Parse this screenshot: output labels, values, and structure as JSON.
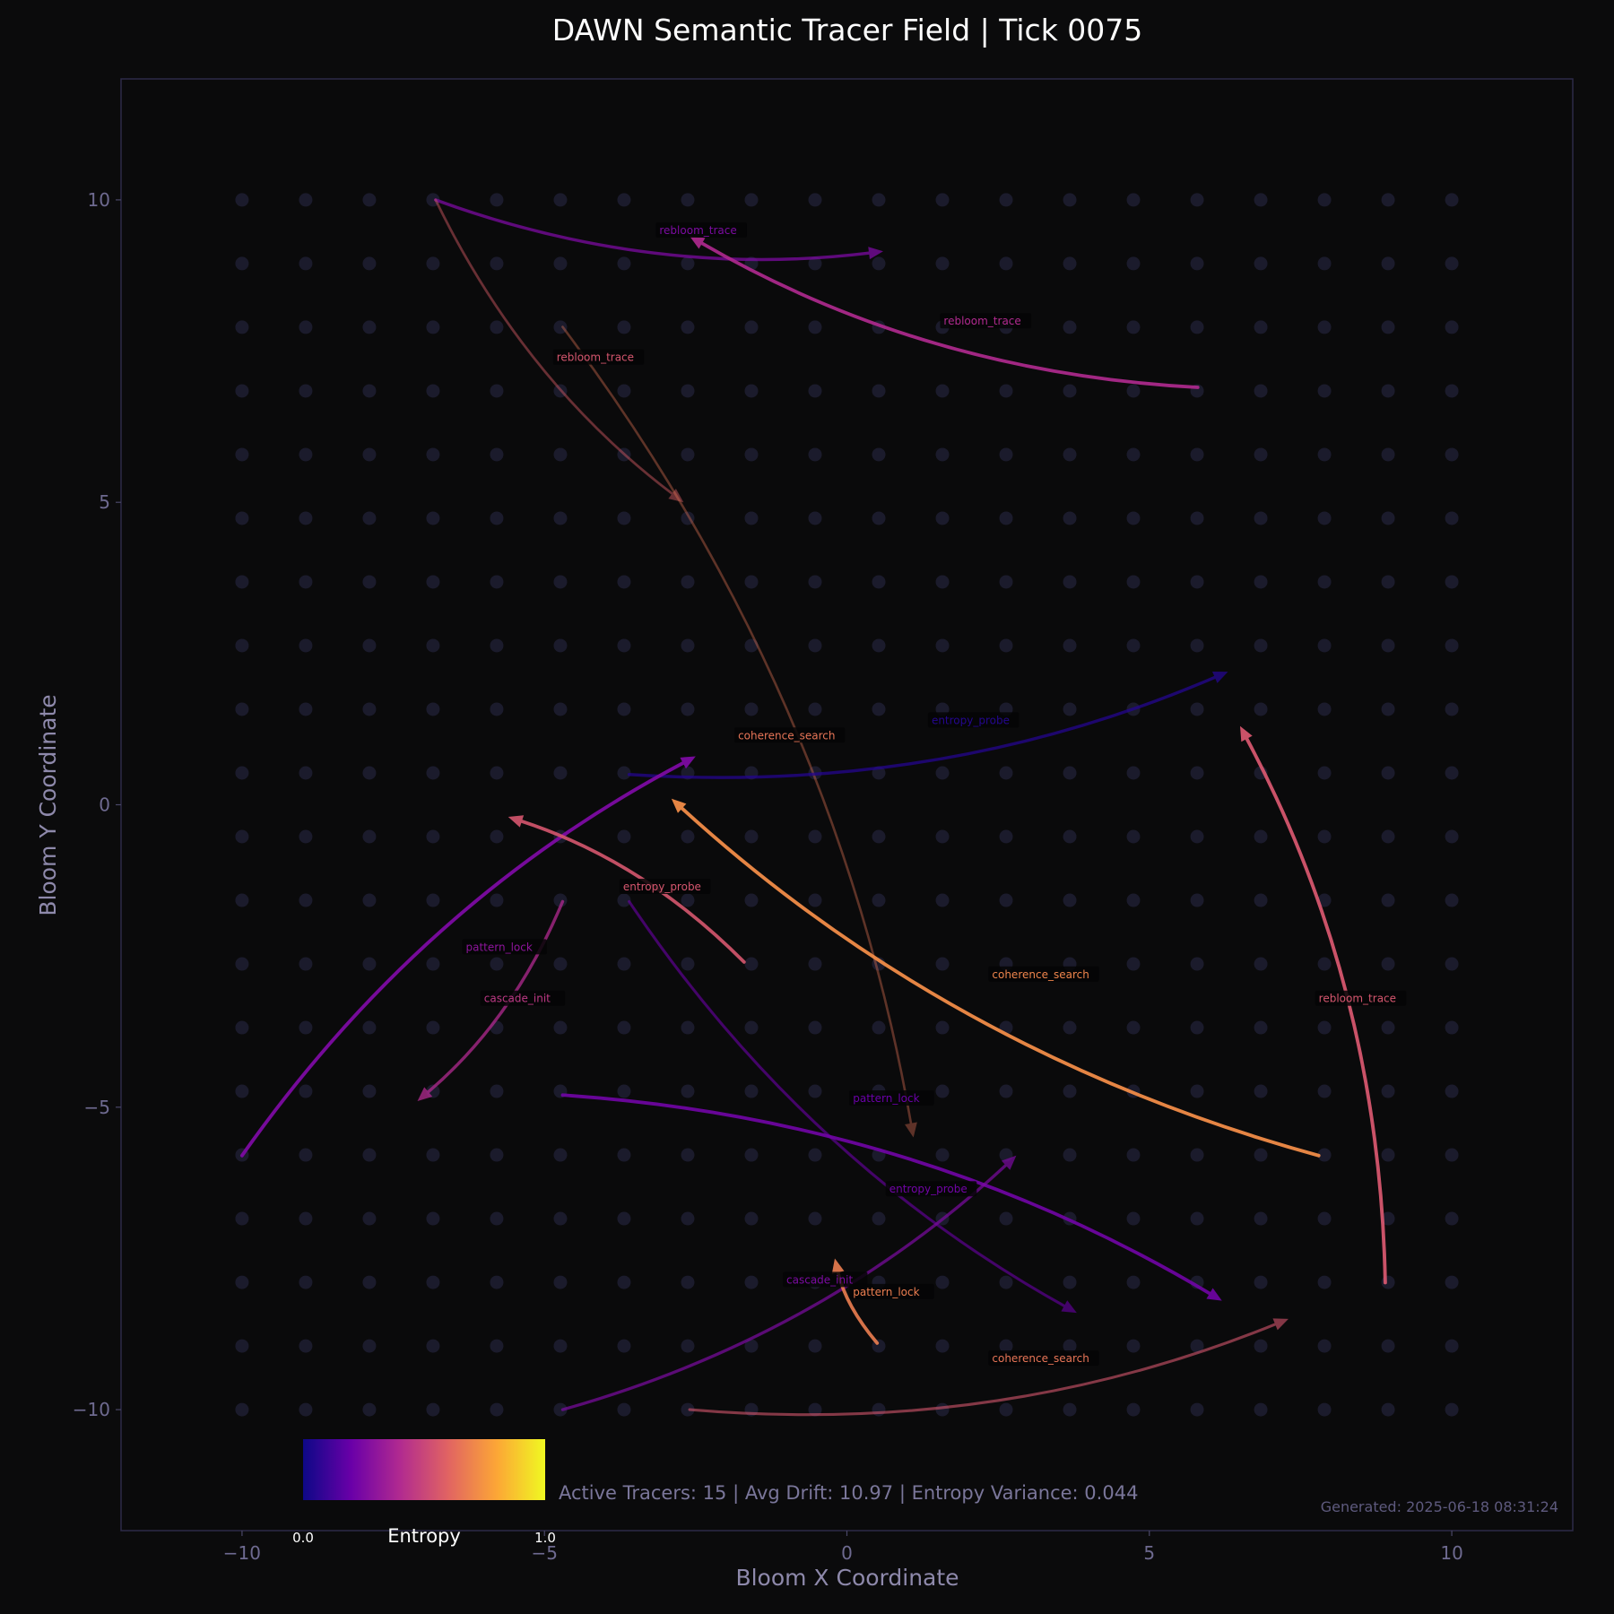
{
  "chart_data": {
    "type": "line",
    "title": "DAWN Semantic Tracer Field | Tick 0075",
    "xlabel": "Bloom X Coordinate",
    "ylabel": "Bloom Y Coordinate",
    "xlim": [
      -12,
      12
    ],
    "ylim": [
      -12,
      12
    ],
    "xticks": [
      "−10",
      "−5",
      "0",
      "5",
      "10"
    ],
    "yticks": [
      "10",
      "5",
      "0",
      "−5",
      "−10"
    ],
    "grid": "dot lattice",
    "colormap": {
      "name": "plasma",
      "title": "Entropy",
      "min_label": "0.0",
      "max_label": "1.0",
      "stops": [
        "#0d0887",
        "#6a00a8",
        "#b12a90",
        "#e16462",
        "#fca636",
        "#f0f921"
      ]
    },
    "series": [
      {
        "label": "rebloom_trace",
        "from": [
          -6.8,
          10.0
        ],
        "to": [
          0.6,
          9.15
        ],
        "entropy": 0.25,
        "opacity": 0.75
      },
      {
        "label": "rebloom_trace",
        "from": [
          5.8,
          6.9
        ],
        "to": [
          -2.6,
          9.4
        ],
        "entropy": 0.4,
        "opacity": 0.9
      },
      {
        "label": "rebloom_trace",
        "from": [
          -6.8,
          10.0
        ],
        "to": [
          -2.7,
          5.0
        ],
        "entropy": 0.58,
        "opacity": 0.45
      },
      {
        "label": "coherence_search",
        "from": [
          -4.7,
          7.9
        ],
        "to": [
          1.1,
          -5.5
        ],
        "entropy": 0.65,
        "opacity": 0.38
      },
      {
        "label": "entropy_probe",
        "from": [
          -3.6,
          0.5
        ],
        "to": [
          6.3,
          2.2
        ],
        "entropy": 0.05,
        "opacity": 0.75
      },
      {
        "label": "coherence_search",
        "from": [
          -10.0,
          -5.8
        ],
        "to": [
          -2.5,
          0.8
        ],
        "entropy": 0.25,
        "opacity": 0.95
      },
      {
        "label": "rebloom_trace",
        "from": [
          8.9,
          -7.9
        ],
        "to": [
          6.5,
          1.3
        ],
        "entropy": 0.55,
        "opacity": 0.95
      },
      {
        "label": "coherence_search",
        "from": [
          7.8,
          -5.8
        ],
        "to": [
          -2.9,
          0.1
        ],
        "entropy": 0.72,
        "opacity": 0.95
      },
      {
        "label": "entropy_probe",
        "from": [
          -1.7,
          -2.6
        ],
        "to": [
          -5.6,
          -0.2
        ],
        "entropy": 0.55,
        "opacity": 0.9
      },
      {
        "label": "cascade_init",
        "from": [
          -4.7,
          -1.6
        ],
        "to": [
          -7.1,
          -4.9
        ],
        "entropy": 0.4,
        "opacity": 0.75
      },
      {
        "label": "pattern_lock",
        "from": [
          -3.6,
          -1.6
        ],
        "to": [
          3.8,
          -8.4
        ],
        "entropy": 0.2,
        "opacity": 0.6
      },
      {
        "label": "entropy_probe",
        "from": [
          -4.7,
          -4.8
        ],
        "to": [
          6.2,
          -8.2
        ],
        "entropy": 0.22,
        "opacity": 0.9
      },
      {
        "label": "cascade_init",
        "from": [
          -4.7,
          -10.0
        ],
        "to": [
          2.8,
          -5.8
        ],
        "entropy": 0.25,
        "opacity": 0.7
      },
      {
        "label": "pattern_lock",
        "from": [
          0.5,
          -8.9
        ],
        "to": [
          -0.2,
          -7.5
        ],
        "entropy": 0.68,
        "opacity": 0.9
      },
      {
        "label": "coherence_search",
        "from": [
          -2.6,
          -10.0
        ],
        "to": [
          7.3,
          -8.5
        ],
        "entropy": 0.55,
        "opacity": 0.6
      }
    ],
    "annotations": [
      {
        "text": "rebloom_trace",
        "at": [
          -3.1,
          9.45
        ],
        "entropy": 0.25
      },
      {
        "text": "rebloom_trace",
        "at": [
          1.6,
          7.95
        ],
        "entropy": 0.4
      },
      {
        "text": "rebloom_trace",
        "at": [
          -4.8,
          7.35
        ],
        "entropy": 0.55
      },
      {
        "text": "coherence_search",
        "at": [
          -1.8,
          1.1
        ],
        "entropy": 0.65
      },
      {
        "text": "entropy_probe",
        "at": [
          1.4,
          1.35
        ],
        "entropy": 0.05
      },
      {
        "text": "entropy_probe",
        "at": [
          -3.7,
          -1.4
        ],
        "entropy": 0.55
      },
      {
        "text": "pattern_lock",
        "at": [
          -6.3,
          -2.4
        ],
        "entropy": 0.3
      },
      {
        "text": "cascade_init",
        "at": [
          -6.0,
          -3.25
        ],
        "entropy": 0.45
      },
      {
        "text": "coherence_search",
        "at": [
          2.4,
          -2.85
        ],
        "entropy": 0.7
      },
      {
        "text": "rebloom_trace",
        "at": [
          7.8,
          -3.25
        ],
        "entropy": 0.55
      },
      {
        "text": "pattern_lock",
        "at": [
          0.1,
          -4.9
        ],
        "entropy": 0.2
      },
      {
        "text": "entropy_probe",
        "at": [
          0.7,
          -6.4
        ],
        "entropy": 0.22
      },
      {
        "text": "cascade_init",
        "at": [
          -1.0,
          -7.9
        ],
        "entropy": 0.25
      },
      {
        "text": "pattern_lock",
        "at": [
          0.1,
          -8.1
        ],
        "entropy": 0.68
      },
      {
        "text": "coherence_search",
        "at": [
          2.4,
          -9.2
        ],
        "entropy": 0.65
      }
    ]
  },
  "footer": {
    "stats": "Active Tracers: 15 | Avg Drift: 10.97 | Entropy Variance: 0.044",
    "generated": "Generated: 2025-06-18 08:31:24"
  }
}
